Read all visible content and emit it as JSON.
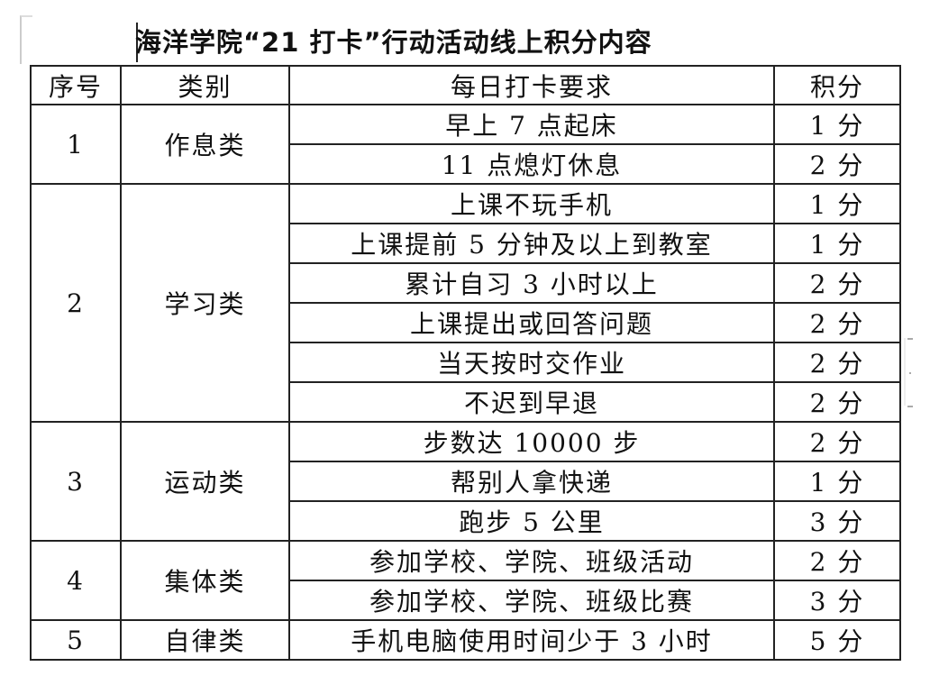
{
  "title": "海洋学院“21 打卡”行动活动线上积分内容",
  "headers": {
    "no": "序号",
    "category": "类别",
    "requirement": "每日打卡要求",
    "points": "积分"
  },
  "groups": [
    {
      "no": "1",
      "category": "作息类",
      "items": [
        {
          "requirement": "早上 7 点起床",
          "points": "1 分"
        },
        {
          "requirement": "11 点熄灯休息",
          "points": "2 分"
        }
      ]
    },
    {
      "no": "2",
      "category": "学习类",
      "items": [
        {
          "requirement": "上课不玩手机",
          "points": "1 分"
        },
        {
          "requirement": "上课提前 5 分钟及以上到教室",
          "points": "1 分"
        },
        {
          "requirement": "累计自习 3 小时以上",
          "points": "2 分"
        },
        {
          "requirement": "上课提出或回答问题",
          "points": "2 分"
        },
        {
          "requirement": "当天按时交作业",
          "points": "2 分"
        },
        {
          "requirement": "不迟到早退",
          "points": "2 分"
        }
      ]
    },
    {
      "no": "3",
      "category": "运动类",
      "items": [
        {
          "requirement": "步数达 10000 步",
          "points": "2 分"
        },
        {
          "requirement": "帮别人拿快递",
          "points": "1 分"
        },
        {
          "requirement": "跑步 5 公里",
          "points": "3 分"
        }
      ]
    },
    {
      "no": "4",
      "category": "集体类",
      "items": [
        {
          "requirement": "参加学校、学院、班级活动",
          "points": "2 分"
        },
        {
          "requirement": "参加学校、学院、班级比赛",
          "points": "3 分"
        }
      ]
    },
    {
      "no": "5",
      "category": "自律类",
      "items": [
        {
          "requirement": "手机电脑使用时间少于 3 小时",
          "points": "5 分"
        }
      ]
    }
  ]
}
